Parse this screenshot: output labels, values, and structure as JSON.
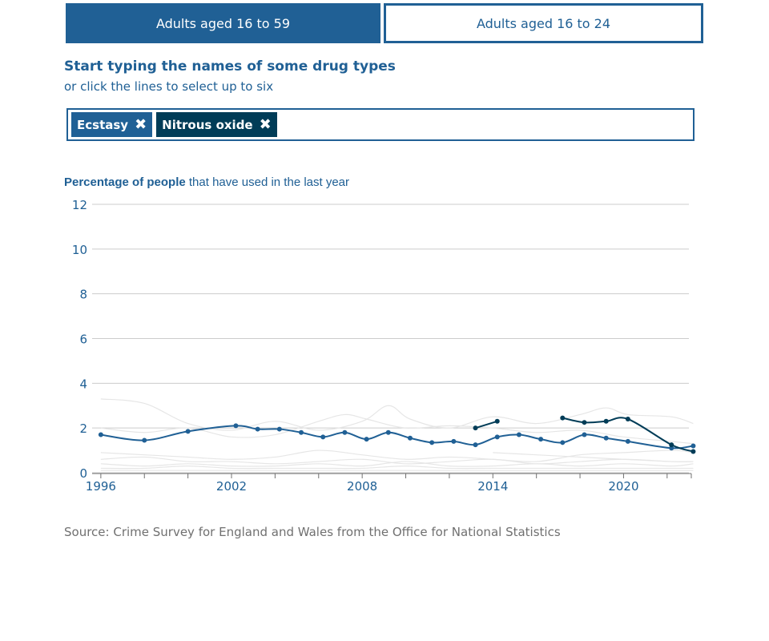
{
  "tabs": [
    {
      "label": "Adults aged 16 to 59",
      "active": true
    },
    {
      "label": "Adults aged 16 to 24",
      "active": false
    }
  ],
  "prompt": {
    "title": "Start typing the names of some drug types",
    "subtitle": "or click the lines to select up to six"
  },
  "chips": [
    {
      "label": "Ecstasy",
      "color": "#206095"
    },
    {
      "label": "Nitrous oxide",
      "color": "#003c57"
    }
  ],
  "chart_heading": {
    "bold": "Percentage of people",
    "rest": " that have used in the last year"
  },
  "source": "Source: Crime Survey for England and Wales from the Office for National Statistics",
  "chart_data": {
    "type": "line",
    "title": "Percentage of people that have used in the last year",
    "ylim": [
      0,
      12
    ],
    "xlim": [
      1995.6,
      2023
    ],
    "y_ticks": [
      0,
      2,
      4,
      6,
      8,
      10,
      12
    ],
    "x_ticks": [
      1996,
      2002,
      2008,
      2014,
      2020
    ],
    "grid": true,
    "series": [
      {
        "name": "Ecstasy",
        "color": "#206095",
        "highlighted": true,
        "points": [
          [
            1996,
            1.7
          ],
          [
            1998,
            1.45
          ],
          [
            2000,
            1.85
          ],
          [
            2002.2,
            2.1
          ],
          [
            2003.2,
            1.95
          ],
          [
            2004.2,
            1.95
          ],
          [
            2005.2,
            1.8
          ],
          [
            2006.2,
            1.6
          ],
          [
            2007.2,
            1.8
          ],
          [
            2008.2,
            1.5
          ],
          [
            2009.2,
            1.8
          ],
          [
            2010.2,
            1.55
          ],
          [
            2011.2,
            1.35
          ],
          [
            2012.2,
            1.4
          ],
          [
            2013.2,
            1.25
          ],
          [
            2014.2,
            1.6
          ],
          [
            2015.2,
            1.7
          ],
          [
            2016.2,
            1.5
          ],
          [
            2017.2,
            1.35
          ],
          [
            2018.2,
            1.7
          ],
          [
            2019.2,
            1.55
          ],
          [
            2020.2,
            1.4
          ],
          [
            2022.2,
            1.1
          ],
          [
            2023.2,
            1.2
          ]
        ]
      },
      {
        "name": "Nitrous oxide",
        "color": "#003c57",
        "highlighted": true,
        "segments": [
          [
            [
              2013.2,
              2.0
            ],
            [
              2014.2,
              2.3
            ]
          ],
          [
            [
              2017.2,
              2.45
            ],
            [
              2018.2,
              2.25
            ],
            [
              2019.2,
              2.3
            ],
            [
              2020.2,
              2.4
            ],
            [
              2022.2,
              1.25
            ],
            [
              2023.2,
              0.95
            ]
          ]
        ]
      }
    ],
    "background_series": [
      [
        [
          1996,
          3.3
        ],
        [
          1998,
          3.1
        ],
        [
          2000,
          2.2
        ],
        [
          2002,
          1.9
        ],
        [
          2004,
          2.3
        ],
        [
          2006,
          1.9
        ],
        [
          2008,
          2.3
        ],
        [
          2009.2,
          3.0
        ],
        [
          2010.2,
          2.4
        ],
        [
          2012,
          2.0
        ],
        [
          2014,
          2.5
        ],
        [
          2016,
          2.2
        ],
        [
          2018,
          2.6
        ],
        [
          2019.2,
          2.9
        ],
        [
          2020.2,
          2.6
        ],
        [
          2022.2,
          2.5
        ],
        [
          2023.2,
          2.2
        ]
      ],
      [
        [
          1996,
          2.0
        ],
        [
          1998,
          1.8
        ],
        [
          2000,
          2.0
        ],
        [
          2002,
          1.6
        ],
        [
          2004,
          1.7
        ],
        [
          2006,
          2.3
        ],
        [
          2007.2,
          2.6
        ],
        [
          2008.2,
          2.4
        ],
        [
          2010,
          2.0
        ],
        [
          2012,
          2.1
        ],
        [
          2014,
          2.0
        ],
        [
          2016,
          1.8
        ],
        [
          2018,
          1.9
        ],
        [
          2020,
          1.6
        ],
        [
          2022.2,
          1.4
        ],
        [
          2023.2,
          1.3
        ]
      ],
      [
        [
          1996,
          0.9
        ],
        [
          1998,
          0.8
        ],
        [
          2000,
          0.7
        ],
        [
          2002,
          0.6
        ],
        [
          2004,
          0.7
        ],
        [
          2006,
          1.0
        ],
        [
          2008,
          0.8
        ],
        [
          2010,
          0.6
        ],
        [
          2012,
          0.7
        ],
        [
          2014,
          0.6
        ],
        [
          2016,
          0.5
        ],
        [
          2018,
          0.8
        ],
        [
          2020,
          0.9
        ],
        [
          2022.2,
          1.0
        ],
        [
          2023.2,
          0.9
        ]
      ],
      [
        [
          1996,
          0.6
        ],
        [
          1998,
          0.7
        ],
        [
          2000,
          0.5
        ],
        [
          2002,
          0.5
        ],
        [
          2004,
          0.4
        ],
        [
          2006,
          0.5
        ],
        [
          2008,
          0.6
        ],
        [
          2010,
          0.4
        ],
        [
          2012,
          0.5
        ],
        [
          2014,
          0.6
        ],
        [
          2016,
          0.4
        ],
        [
          2018,
          0.5
        ],
        [
          2020,
          0.6
        ],
        [
          2022.2,
          0.5
        ],
        [
          2023.2,
          0.5
        ]
      ],
      [
        [
          1996,
          0.4
        ],
        [
          1998,
          0.3
        ],
        [
          2000,
          0.4
        ],
        [
          2002,
          0.3
        ],
        [
          2004,
          0.3
        ],
        [
          2006,
          0.4
        ],
        [
          2008,
          0.3
        ],
        [
          2010,
          0.5
        ],
        [
          2012,
          0.3
        ],
        [
          2014,
          0.3
        ],
        [
          2016,
          0.4
        ],
        [
          2018,
          0.3
        ],
        [
          2020,
          0.4
        ],
        [
          2022.2,
          0.3
        ],
        [
          2023.2,
          0.4
        ]
      ],
      [
        [
          1996,
          0.2
        ],
        [
          1998,
          0.2
        ],
        [
          2000,
          0.3
        ],
        [
          2002,
          0.2
        ],
        [
          2004,
          0.2
        ],
        [
          2006,
          0.2
        ],
        [
          2008,
          0.2
        ],
        [
          2010,
          0.3
        ],
        [
          2012,
          0.2
        ],
        [
          2014,
          0.2
        ],
        [
          2016,
          0.2
        ],
        [
          2018,
          0.2
        ],
        [
          2020,
          0.2
        ],
        [
          2022.2,
          0.2
        ],
        [
          2023.2,
          0.2
        ]
      ],
      [
        [
          1996,
          0.1
        ],
        [
          2000,
          0.1
        ],
        [
          2004,
          0.1
        ],
        [
          2008,
          0.1
        ],
        [
          2012,
          0.1
        ],
        [
          2016,
          0.1
        ],
        [
          2020,
          0.1
        ],
        [
          2023.2,
          0.1
        ]
      ],
      [
        [
          2014,
          0.9
        ],
        [
          2016,
          0.8
        ],
        [
          2018,
          0.7
        ],
        [
          2020,
          0.6
        ],
        [
          2022.2,
          0.5
        ],
        [
          2023.2,
          0.5
        ]
      ]
    ]
  }
}
